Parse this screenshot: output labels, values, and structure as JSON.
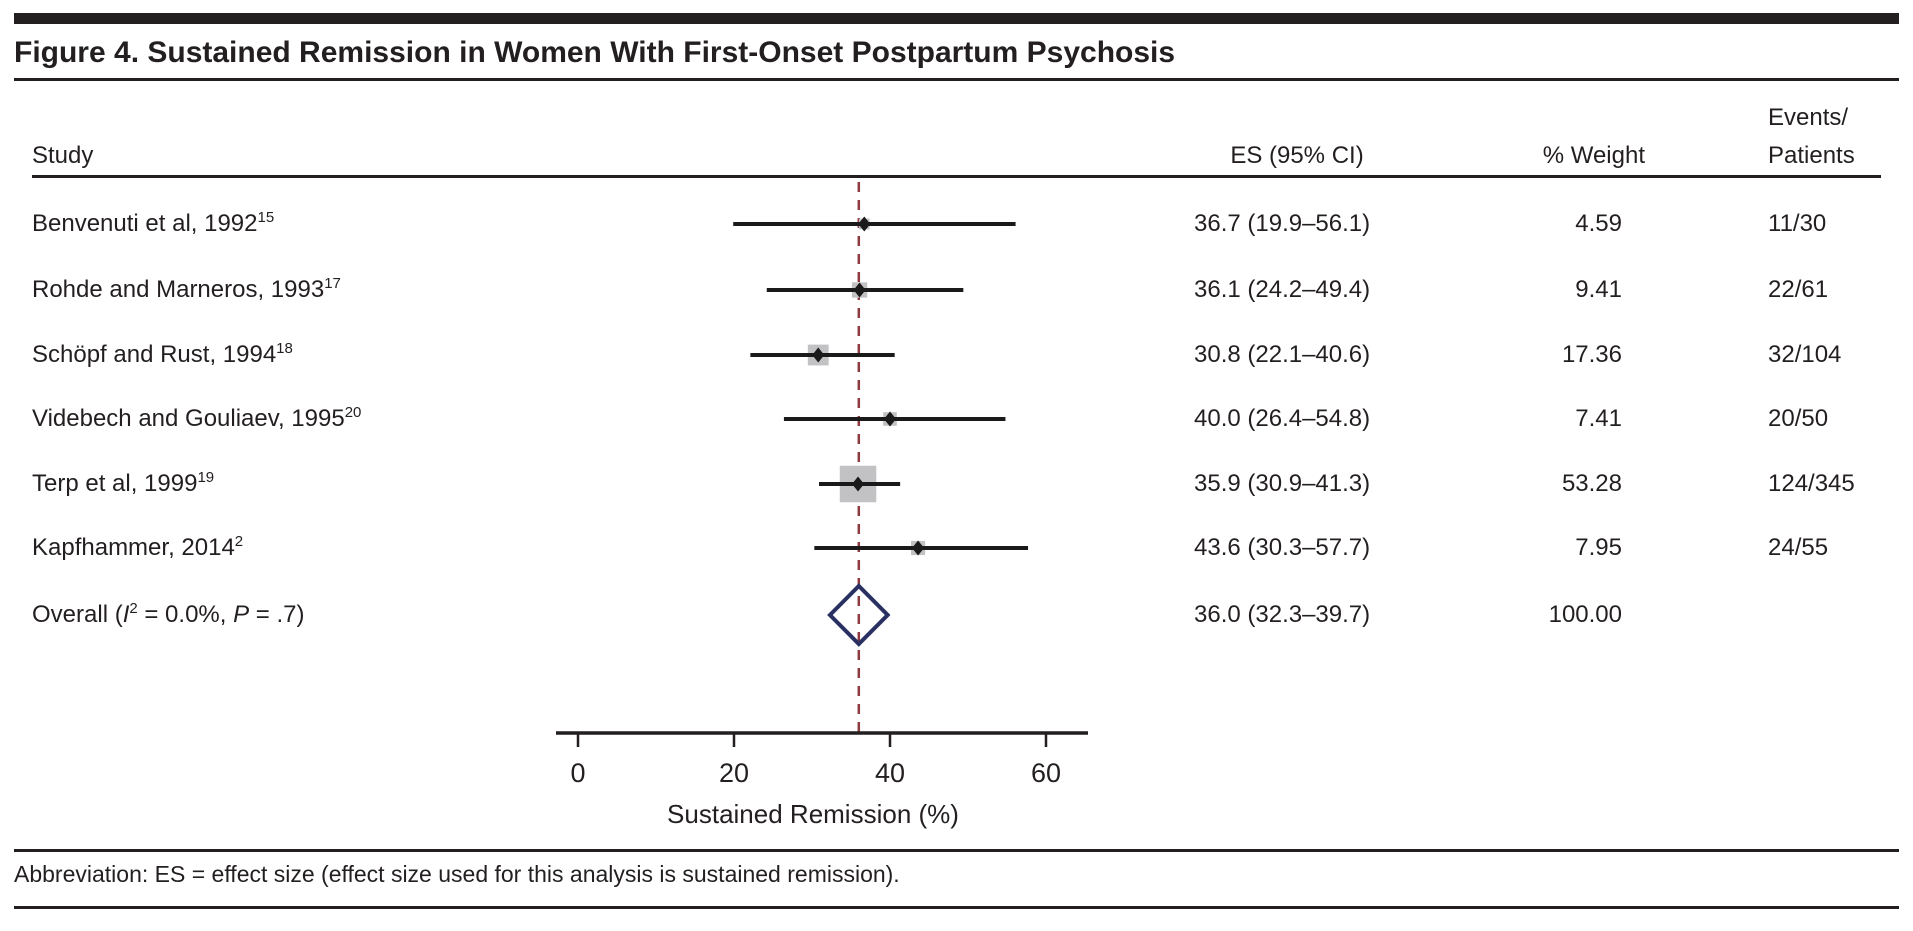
{
  "figure": {
    "title": "Figure 4. Sustained Remission in Women With First-Onset Postpartum Psychosis",
    "footnote": "Abbreviation: ES = effect size (effect size used for this analysis is sustained remission)."
  },
  "table": {
    "headers": {
      "study": "Study",
      "es": "ES (95% CI)",
      "weight": "% Weight",
      "events_line1": "Events/",
      "events_line2": "Patients"
    }
  },
  "chart_data": {
    "type": "forest",
    "xlabel": "Sustained Remission (%)",
    "xticks": [
      0,
      20,
      40,
      60
    ],
    "xlim": [
      -3,
      65
    ],
    "reference_line": 36.0,
    "legend": "none",
    "grid": "off",
    "studies": [
      {
        "label": "Benvenuti et al, 1992",
        "ref": "15",
        "es": 36.7,
        "ci_low": 19.9,
        "ci_high": 56.1,
        "es_ci_text": "36.7 (19.9–56.1)",
        "weight": 4.59,
        "weight_text": "4.59",
        "events": "11/30"
      },
      {
        "label": "Rohde and Marneros, 1993",
        "ref": "17",
        "es": 36.1,
        "ci_low": 24.2,
        "ci_high": 49.4,
        "es_ci_text": "36.1 (24.2–49.4)",
        "weight": 9.41,
        "weight_text": "9.41",
        "events": "22/61"
      },
      {
        "label": "Schöpf and Rust, 1994",
        "ref": "18",
        "es": 30.8,
        "ci_low": 22.1,
        "ci_high": 40.6,
        "es_ci_text": "30.8 (22.1–40.6)",
        "weight": 17.36,
        "weight_text": "17.36",
        "events": "32/104"
      },
      {
        "label": "Videbech and Gouliaev, 1995",
        "ref": "20",
        "es": 40.0,
        "ci_low": 26.4,
        "ci_high": 54.8,
        "es_ci_text": "40.0 (26.4–54.8)",
        "weight": 7.41,
        "weight_text": "7.41",
        "events": "20/50"
      },
      {
        "label": "Terp et al, 1999",
        "ref": "19",
        "es": 35.9,
        "ci_low": 30.9,
        "ci_high": 41.3,
        "es_ci_text": "35.9 (30.9–41.3)",
        "weight": 53.28,
        "weight_text": "53.28",
        "events": "124/345"
      },
      {
        "label": "Kapfhammer, 2014",
        "ref": "2",
        "es": 43.6,
        "ci_low": 30.3,
        "ci_high": 57.7,
        "es_ci_text": "43.6 (30.3–57.7)",
        "weight": 7.95,
        "weight_text": "7.95",
        "events": "24/55"
      }
    ],
    "overall": {
      "label_pre": "Overall (",
      "label_i": "I",
      "label_i_sup": "2",
      "label_mid": " = 0.0%, ",
      "label_p": "P",
      "label_post": " = .7)",
      "es": 36.0,
      "ci_low": 32.3,
      "ci_high": 39.7,
      "es_ci_text": "36.0 (32.3–39.7)",
      "weight_text": "100.00"
    }
  },
  "colors": {
    "text": "#231f20",
    "rule": "#231f20",
    "ci_line": "#1a1a1a",
    "point_marker": "#1a1a1a",
    "weight_square": "#c2c2c4",
    "dashed_reference_line": "#8e3a3e",
    "overall_diamond": "#2a3162"
  }
}
